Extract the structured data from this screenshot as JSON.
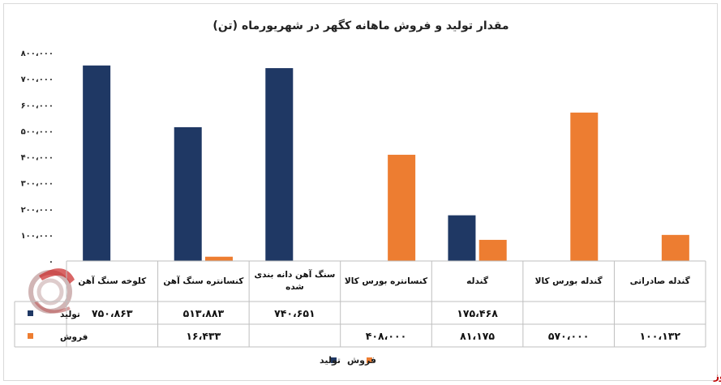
{
  "chart_data": {
    "type": "bar",
    "title": "مقدار تولید و فروش ماهانه کگهر در شهریورماه (تن)",
    "categories": [
      "کلوخه سنگ آهن",
      "کنسانتره سنگ آهن",
      "سنگ آهن دانه بندی شده",
      "کنسانتره بورس کالا",
      "گندله",
      "گندله بورس کالا",
      "گندله صادراتی"
    ],
    "series": [
      {
        "name": "تولید",
        "color": "#1f3864",
        "values": [
          750863,
          513883,
          740651,
          null,
          175468,
          null,
          null
        ],
        "labels": [
          "۷۵۰،۸۶۳",
          "۵۱۳،۸۸۳",
          "۷۴۰،۶۵۱",
          "",
          "۱۷۵،۴۶۸",
          "",
          ""
        ]
      },
      {
        "name": "فروش",
        "color": "#ed7d31",
        "values": [
          null,
          16433,
          null,
          408000,
          81175,
          570000,
          100132
        ],
        "labels": [
          "",
          "۱۶،۴۳۳",
          "",
          "۴۰۸،۰۰۰",
          "۸۱،۱۷۵",
          "۵۷۰،۰۰۰",
          "۱۰۰،۱۳۲"
        ]
      }
    ],
    "ylim": [
      0,
      800000
    ],
    "yticks": [
      0,
      100000,
      200000,
      300000,
      400000,
      500000,
      600000,
      700000,
      800000
    ],
    "ytick_labels": [
      "۰",
      "۱۰۰،۰۰۰",
      "۲۰۰،۰۰۰",
      "۳۰۰،۰۰۰",
      "۴۰۰،۰۰۰",
      "۵۰۰،۰۰۰",
      "۶۰۰،۰۰۰",
      "۷۰۰،۰۰۰",
      "۸۰۰،۰۰۰"
    ],
    "grid": false,
    "legend_placement": "bottom-center",
    "has_data_table": true
  },
  "watermark": {
    "text": "بورس نیوز",
    "color": "#c00000"
  }
}
